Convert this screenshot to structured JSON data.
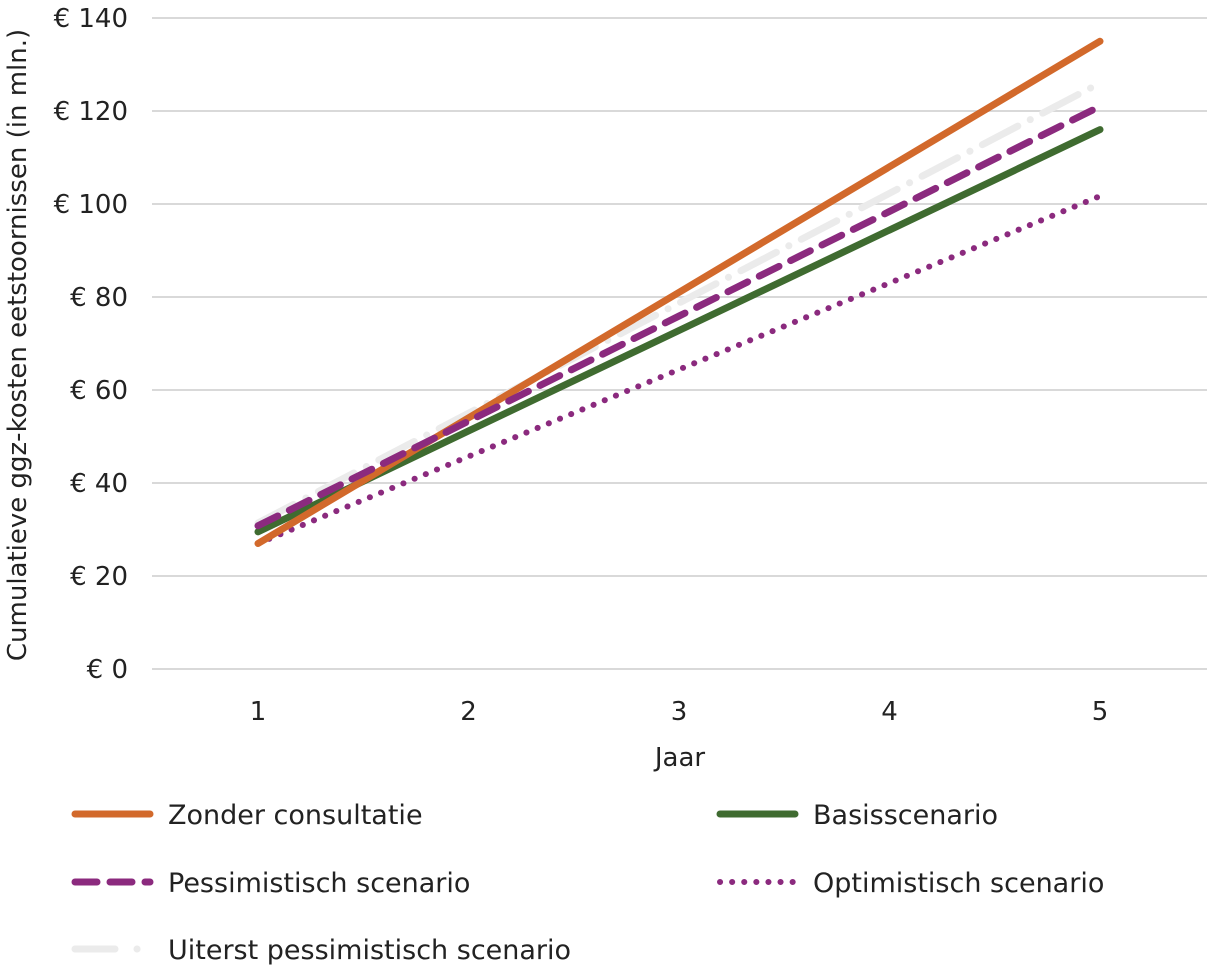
{
  "chart_data": {
    "type": "line",
    "title": "",
    "xlabel": "Jaar",
    "ylabel": "Cumulatieve ggz-kosten eetstoornissen (in mln.)",
    "x": [
      1,
      2,
      3,
      4,
      5
    ],
    "x_tick_labels": [
      "1",
      "2",
      "3",
      "4",
      "5"
    ],
    "ylim": [
      0,
      140
    ],
    "y_ticks": [
      0,
      20,
      40,
      60,
      80,
      100,
      120,
      140
    ],
    "y_tick_labels": [
      "€ 0",
      "€ 20",
      "€ 40",
      "€ 60",
      "€ 80",
      "€ 100",
      "€ 120",
      "€ 140"
    ],
    "grid": "horizontal",
    "legend_placement": "bottom",
    "series": [
      {
        "name": "Zonder consultatie",
        "values": [
          27,
          54,
          81,
          108,
          135
        ],
        "color": "#d2692b",
        "style": "solid"
      },
      {
        "name": "Basisscenario",
        "values": [
          29.5,
          51.2,
          72.8,
          94.4,
          116
        ],
        "color": "#3f6b30",
        "style": "solid"
      },
      {
        "name": "Pessimistisch scenario",
        "values": [
          30.8,
          53.3,
          75.9,
          98.4,
          121
        ],
        "color": "#8b2a7e",
        "style": "dashed"
      },
      {
        "name": "Optimistisch scenario",
        "values": [
          27,
          45.7,
          64.4,
          83,
          101.7
        ],
        "color": "#8b2a7e",
        "style": "dotted"
      },
      {
        "name": "Uiterst pessimistisch scenario",
        "values": [
          31.4,
          55,
          78.7,
          102.3,
          126
        ],
        "color": "#ebebeb",
        "style": "dashdot"
      }
    ]
  }
}
